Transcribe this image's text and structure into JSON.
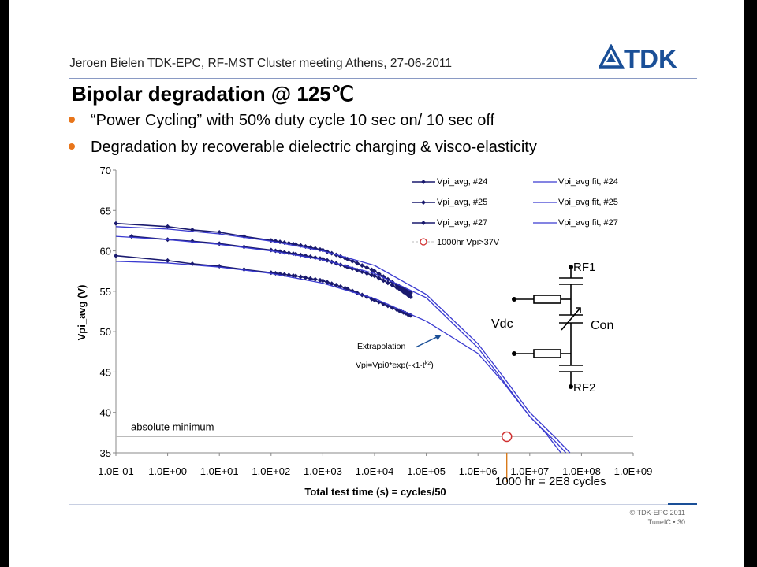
{
  "header": {
    "meeting_line": "Jeroen Bielen TDK-EPC, RF-MST Cluster meeting Athens, 27-06-2011",
    "logo_text": "TDK"
  },
  "slide": {
    "title": "Bipolar degradation @ 125℃",
    "bullets": [
      "“Power Cycling” with 50% duty cycle 10 sec on/ 10 sec off",
      "Degradation by recoverable dielectric charging & visco-elasticity"
    ]
  },
  "footer": {
    "copyright": "© TDK-EPC 2011",
    "page": "TuneIC • 30"
  },
  "colors": {
    "series_navy": "#1a1a6e",
    "fit_blue": "#3a3ad0",
    "target_red": "#d03030",
    "annotation_orange": "#d87a1a",
    "bullet_orange": "#e8751a",
    "brand_blue": "#1a4f97"
  },
  "chart_data": {
    "type": "line",
    "x_scale": "log",
    "xlabel": "Total test time (s) = cycles/50",
    "ylabel": "Vpi_avg (V)",
    "ylim": [
      35,
      70
    ],
    "y_ticks": [
      35,
      40,
      45,
      50,
      55,
      60,
      65,
      70
    ],
    "x_ticks": [
      0.1,
      1,
      10,
      100,
      1000,
      10000,
      100000,
      1000000,
      10000000,
      100000000,
      1000000000
    ],
    "x_tick_labels": [
      "1.0E-01",
      "1.0E+00",
      "1.0E+01",
      "1.0E+02",
      "1.0E+03",
      "1.0E+04",
      "1.0E+05",
      "1.0E+06",
      "1.0E+07",
      "1.0E+08",
      "1.0E+09"
    ],
    "legend_position": "top-right",
    "legend": [
      "Vpi_avg, #24",
      "Vpi_avg fit, #24",
      "Vpi_avg, #25",
      "Vpi_avg fit, #25",
      "Vpi_avg, #27",
      "Vpi_avg fit, #27",
      "1000hr Vpi>37V"
    ],
    "series": [
      {
        "name": "Vpi_avg, #24",
        "style": "markers",
        "x": [
          0.1,
          1,
          3,
          10,
          30,
          100,
          300,
          1000,
          3000,
          10000,
          30000,
          50000
        ],
        "y": [
          63.4,
          63.0,
          62.6,
          62.3,
          61.8,
          61.3,
          60.8,
          60.1,
          59.0,
          57.5,
          55.6,
          54.8
        ]
      },
      {
        "name": "Vpi_avg, #25",
        "style": "markers",
        "x": [
          0.2,
          1,
          3,
          10,
          30,
          100,
          300,
          1000,
          3000,
          10000,
          30000,
          50000
        ],
        "y": [
          61.8,
          61.4,
          61.2,
          60.9,
          60.5,
          60.1,
          59.6,
          59.0,
          58.0,
          56.9,
          55.3,
          54.3
        ]
      },
      {
        "name": "Vpi_avg, #27",
        "style": "markers",
        "x": [
          0.1,
          1,
          3,
          10,
          30,
          100,
          300,
          1000,
          3000,
          10000,
          30000,
          50000
        ],
        "y": [
          59.4,
          58.8,
          58.4,
          58.1,
          57.7,
          57.3,
          56.9,
          56.3,
          55.3,
          53.9,
          52.6,
          52.0
        ]
      },
      {
        "name": "Vpi_avg fit, #24",
        "style": "line",
        "x": [
          0.1,
          1,
          10,
          100,
          1000,
          10000,
          100000,
          1000000,
          3000000,
          10000000,
          30000000,
          60000000
        ],
        "y": [
          63.0,
          62.7,
          62.1,
          61.2,
          60.0,
          58.2,
          54.6,
          48.5,
          44.5,
          40.0,
          37.0,
          35.0
        ]
      },
      {
        "name": "Vpi_avg fit, #25",
        "style": "line",
        "x": [
          0.1,
          1,
          10,
          100,
          1000,
          10000,
          100000,
          1000000,
          3000000,
          10000000,
          30000000,
          50000000
        ],
        "y": [
          61.8,
          61.4,
          60.8,
          60.0,
          58.9,
          57.2,
          54.2,
          48.0,
          44.0,
          39.5,
          36.5,
          35.0
        ]
      },
      {
        "name": "Vpi_avg fit, #27",
        "style": "line",
        "x": [
          0.1,
          1,
          10,
          100,
          1000,
          10000,
          100000,
          1000000,
          3000000,
          10000000,
          20000000,
          40000000
        ],
        "y": [
          58.7,
          58.5,
          58.0,
          57.2,
          56.0,
          54.1,
          51.3,
          47.3,
          43.8,
          39.5,
          37.5,
          35.0
        ]
      },
      {
        "name": "1000hr Vpi>37V",
        "style": "open-circle",
        "x": [
          3600000
        ],
        "y": [
          37.0
        ]
      }
    ],
    "reference_lines": [
      {
        "label": "absolute minimum",
        "y": 37.0
      }
    ],
    "annotations": [
      {
        "text": "Extrapolation"
      },
      {
        "text": "Vpi=Vpi0*exp(-k1·t",
        "superscript": "k2",
        "suffix": ")"
      },
      {
        "text": "1000 hr = 2E8 cycles",
        "x": 3600000
      }
    ],
    "circuit_labels": [
      "RF1",
      "Vdc",
      "Con",
      "RF2"
    ]
  }
}
